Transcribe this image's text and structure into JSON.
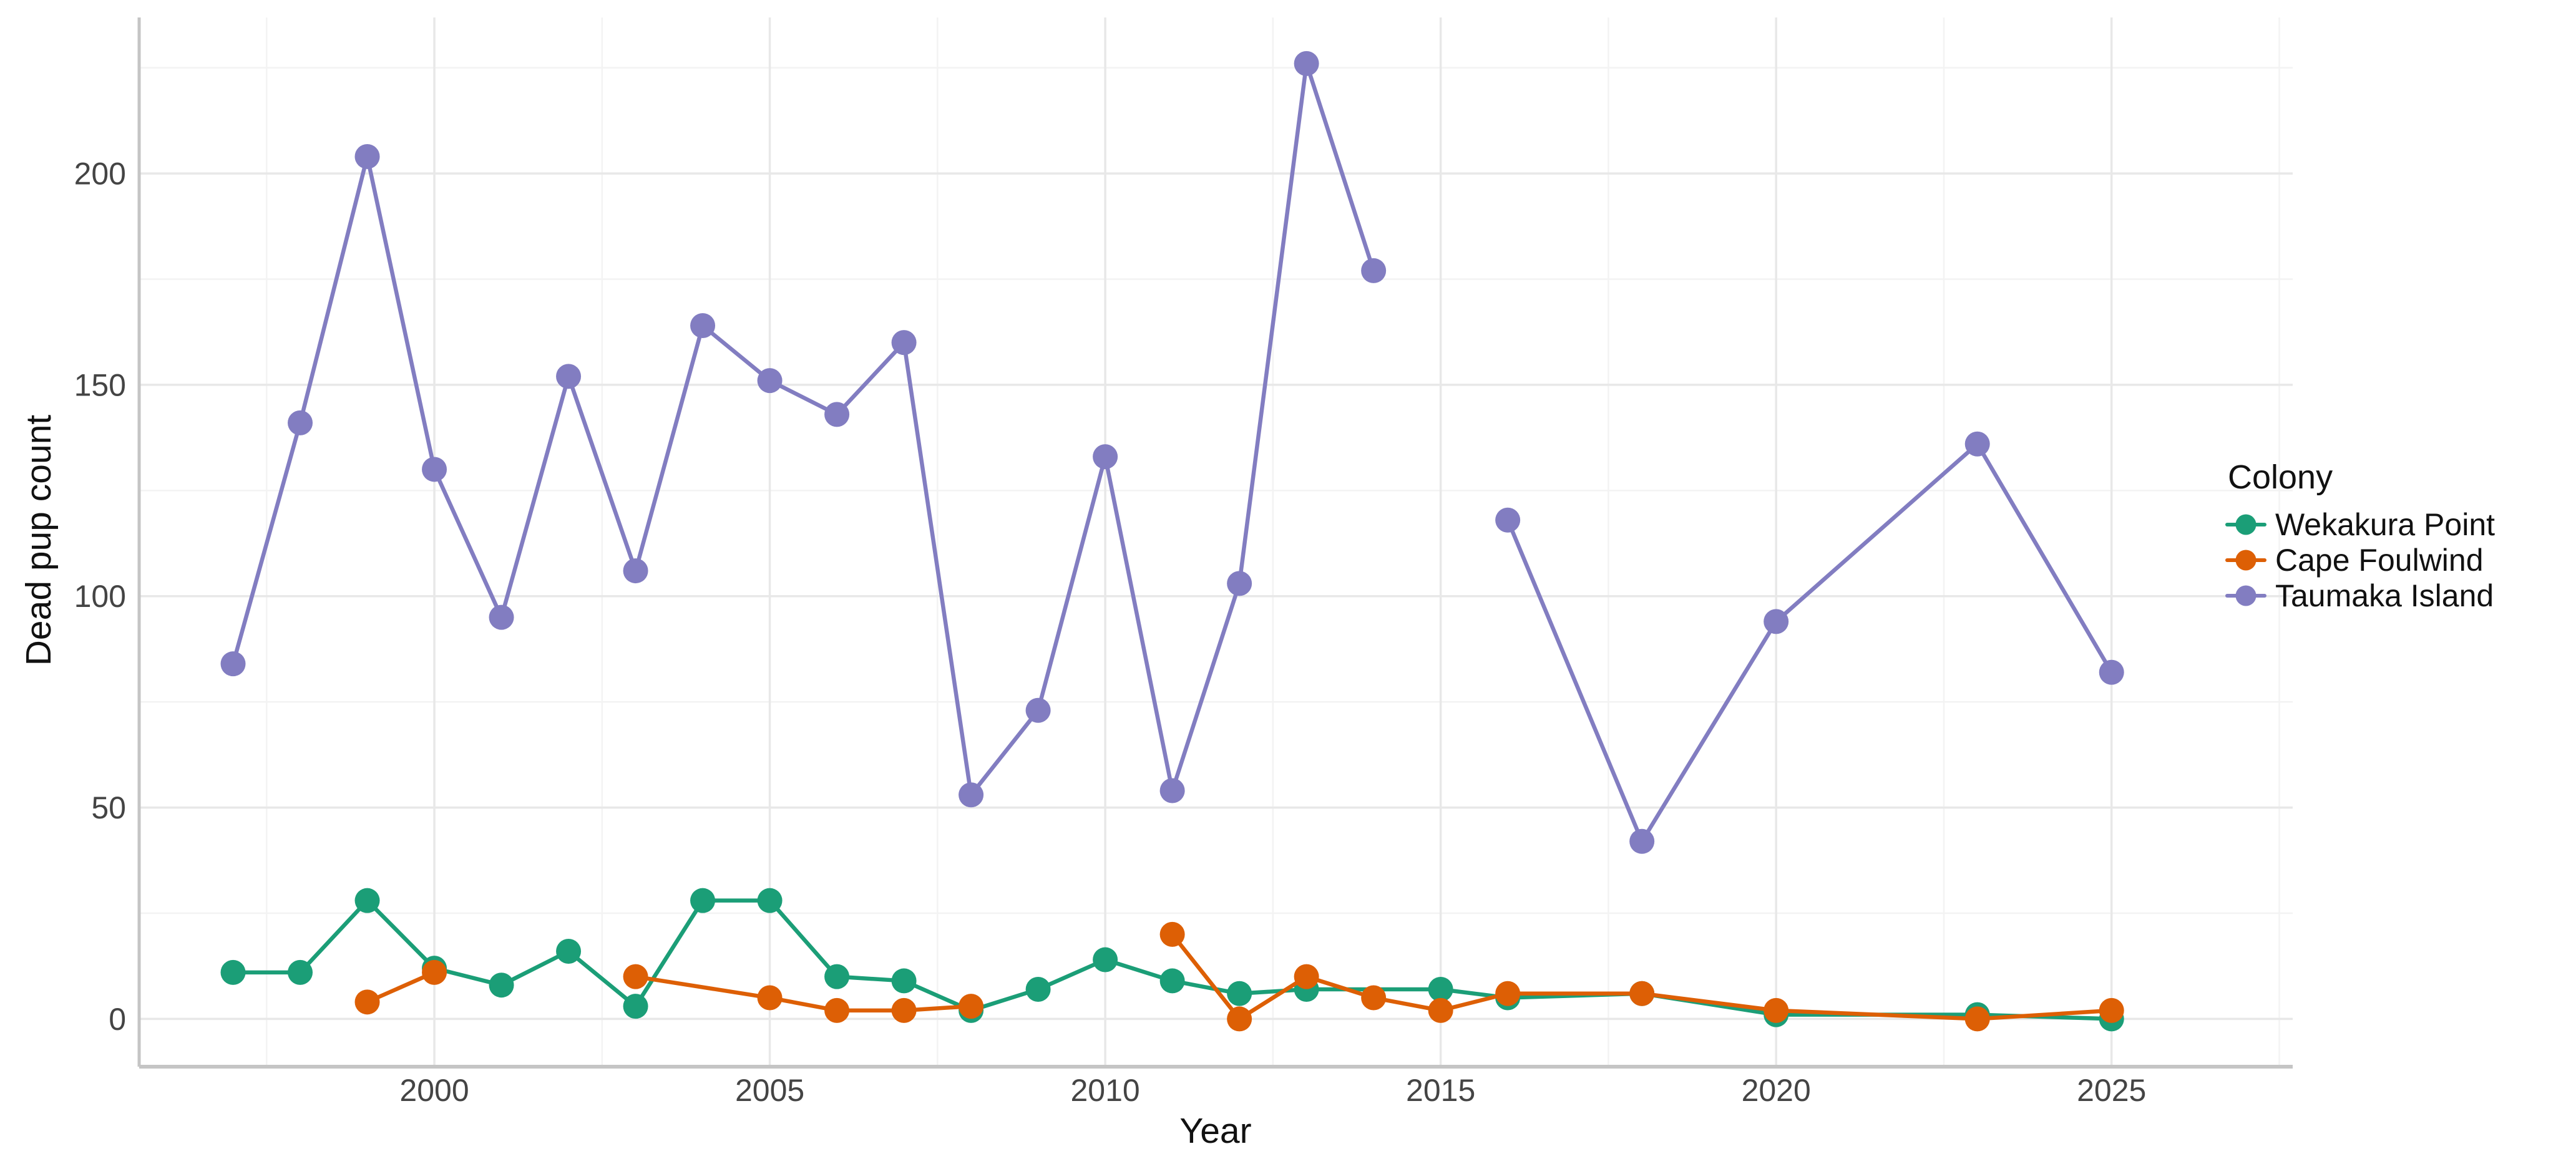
{
  "chart_data": {
    "type": "line",
    "title": "",
    "xlabel": "Year",
    "ylabel": "Dead pup count",
    "legend_title": "Colony",
    "legend_position": "right",
    "grid": true,
    "background_color": "#FFFFFF",
    "axis_line_color": "#C5C5C5",
    "major_grid_color": "#E8E8E8",
    "minor_grid_color": "#F3F3F3",
    "tick_label_color": "#444444",
    "x_ticks": [
      2000,
      2005,
      2010,
      2015,
      2020,
      2025
    ],
    "y_ticks": [
      0,
      50,
      100,
      150,
      200
    ],
    "x_minor_gridlines": [
      1997.5,
      2002.5,
      2007.5,
      2012.5,
      2017.5,
      2022.5,
      2027.5
    ],
    "y_minor_gridlines": [
      25,
      75,
      125,
      175,
      225
    ],
    "xlim": [
      1995.6,
      2027.7
    ],
    "ylim": [
      -11.3,
      236.9
    ],
    "series": [
      {
        "name": "Wekakura Point",
        "color": "#1B9E77",
        "segments": [
          [
            [
              1997,
              11
            ],
            [
              1998,
              11
            ],
            [
              1999,
              28
            ],
            [
              2000,
              12
            ],
            [
              2001,
              8
            ],
            [
              2002,
              16
            ],
            [
              2003,
              3
            ],
            [
              2004,
              28
            ],
            [
              2005,
              28
            ],
            [
              2006,
              10
            ],
            [
              2007,
              9
            ],
            [
              2008,
              2
            ],
            [
              2009,
              7
            ],
            [
              2010,
              14
            ],
            [
              2011,
              9
            ],
            [
              2012,
              6
            ],
            [
              2013,
              7
            ],
            [
              2015,
              7
            ],
            [
              2016,
              5
            ],
            [
              2018,
              6
            ],
            [
              2020,
              1
            ],
            [
              2023,
              1
            ],
            [
              2025,
              0
            ]
          ]
        ]
      },
      {
        "name": "Cape Foulwind",
        "color": "#DD5F05",
        "segments": [
          [
            [
              1999,
              4
            ],
            [
              2000,
              11
            ]
          ],
          [
            [
              2003,
              10
            ],
            [
              2005,
              5
            ],
            [
              2006,
              2
            ],
            [
              2007,
              2
            ],
            [
              2008,
              3
            ]
          ],
          [
            [
              2011,
              20
            ],
            [
              2012,
              0
            ],
            [
              2013,
              10
            ],
            [
              2014,
              5
            ],
            [
              2015,
              2
            ],
            [
              2016,
              6
            ],
            [
              2018,
              6
            ],
            [
              2020,
              2
            ],
            [
              2023,
              0
            ],
            [
              2025,
              2
            ]
          ]
        ]
      },
      {
        "name": "Taumaka Island",
        "color": "#827DC1",
        "segments": [
          [
            [
              1997,
              84
            ],
            [
              1998,
              141
            ],
            [
              1999,
              204
            ],
            [
              2000,
              130
            ],
            [
              2001,
              95
            ],
            [
              2002,
              152
            ],
            [
              2003,
              106
            ],
            [
              2004,
              164
            ],
            [
              2005,
              151
            ],
            [
              2006,
              143
            ],
            [
              2007,
              160
            ],
            [
              2008,
              53
            ],
            [
              2009,
              73
            ],
            [
              2010,
              133
            ],
            [
              2011,
              54
            ],
            [
              2012,
              103
            ],
            [
              2013,
              226
            ],
            [
              2014,
              177
            ]
          ],
          [
            [
              2016,
              118
            ],
            [
              2018,
              42
            ],
            [
              2020,
              94
            ],
            [
              2023,
              136
            ],
            [
              2025,
              82
            ]
          ]
        ]
      }
    ]
  }
}
